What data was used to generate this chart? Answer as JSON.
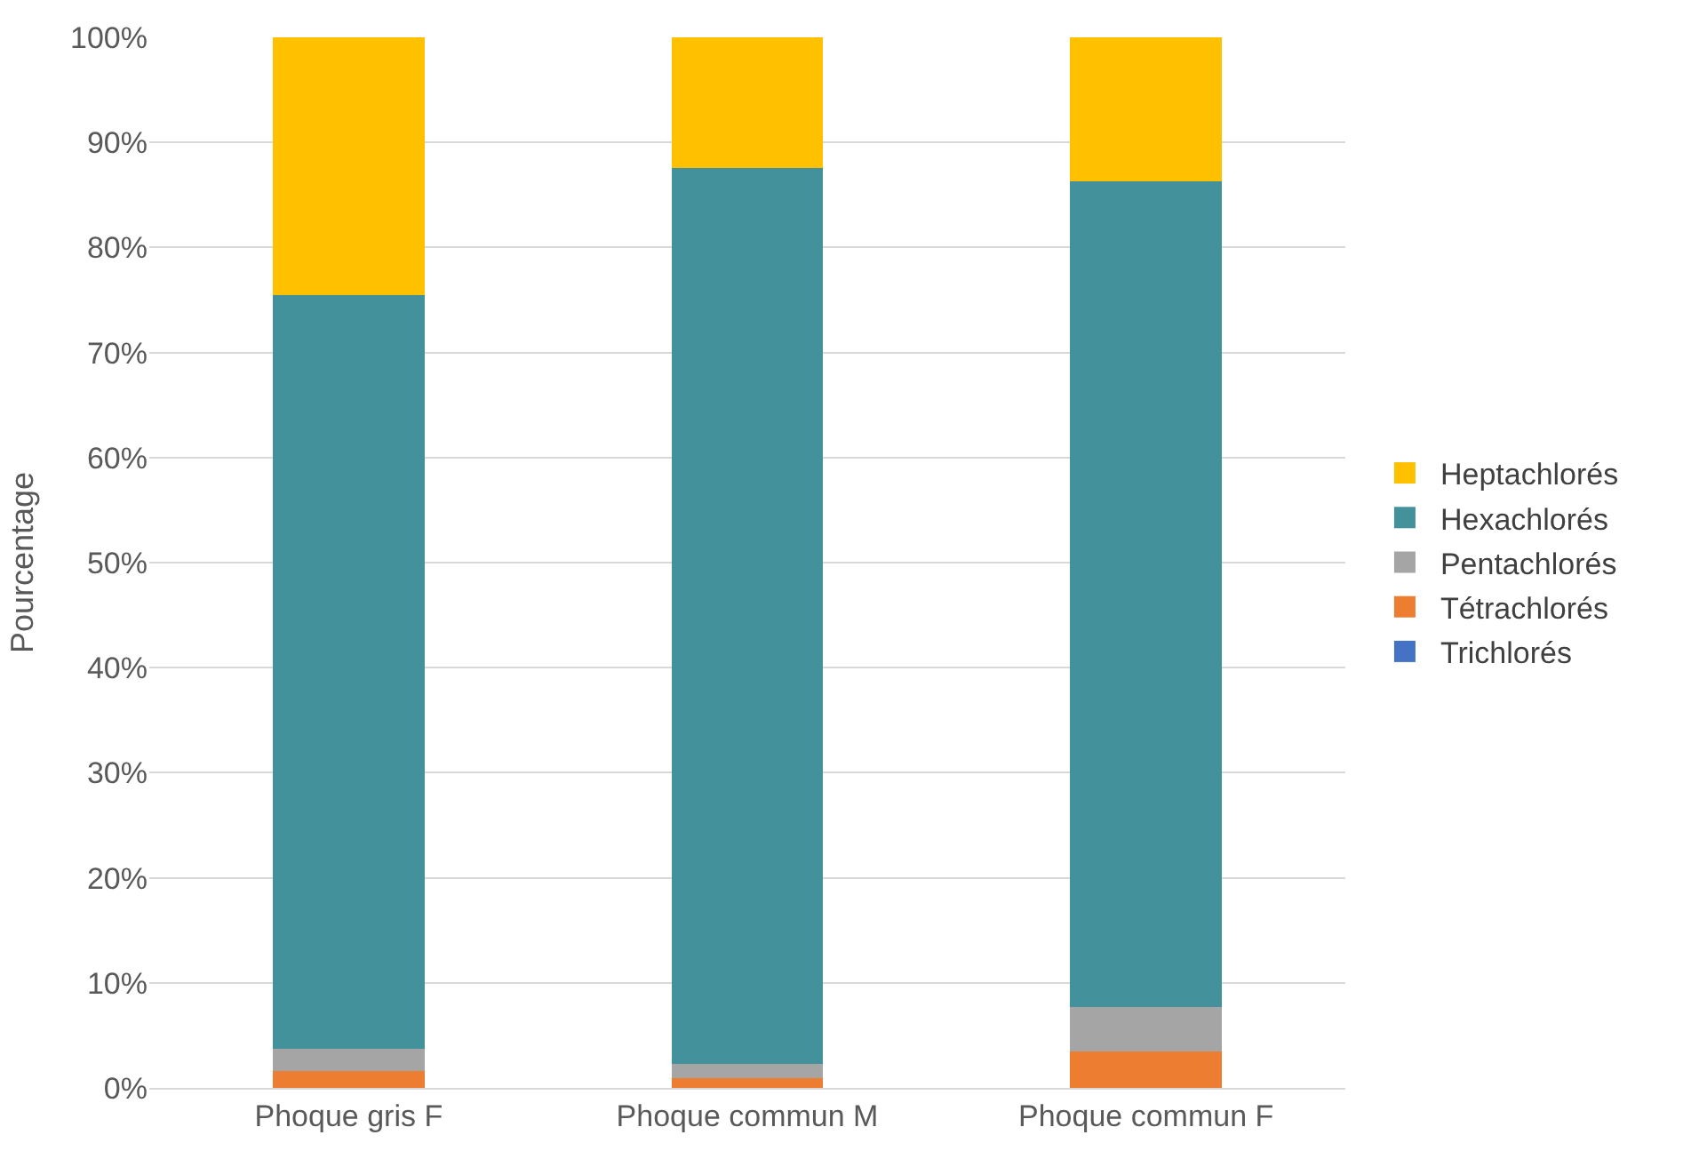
{
  "chart_data": {
    "type": "bar",
    "stacked": true,
    "ylabel": "Pourcentage",
    "categories": [
      "Phoque gris F",
      "Phoque commun M",
      "Phoque commun F"
    ],
    "series": [
      {
        "name": "Trichlorés",
        "color": "#4472c4",
        "values": [
          0,
          0,
          0
        ]
      },
      {
        "name": "Tétrachlorés",
        "color": "#ed7d31",
        "values": [
          1.6,
          0.9,
          3.5
        ]
      },
      {
        "name": "Pentachlorés",
        "color": "#a5a5a5",
        "values": [
          2.1,
          1.4,
          4.2
        ]
      },
      {
        "name": "Hexachlorés",
        "color": "#43919a",
        "values": [
          71.8,
          85.3,
          78.6
        ]
      },
      {
        "name": "Heptachlorés",
        "color": "#ffc000",
        "values": [
          24.5,
          12.4,
          13.7
        ]
      }
    ],
    "ylim": [
      0,
      100
    ],
    "yticks": [
      {
        "value": 0,
        "label": "0%"
      },
      {
        "value": 10,
        "label": "10%"
      },
      {
        "value": 20,
        "label": "20%"
      },
      {
        "value": 30,
        "label": "30%"
      },
      {
        "value": 40,
        "label": "40%"
      },
      {
        "value": 50,
        "label": "50%"
      },
      {
        "value": 60,
        "label": "60%"
      },
      {
        "value": 70,
        "label": "70%"
      },
      {
        "value": 80,
        "label": "80%"
      },
      {
        "value": 90,
        "label": "90%"
      },
      {
        "value": 100,
        "label": "100%"
      }
    ],
    "grid": "y",
    "legend": "right"
  }
}
